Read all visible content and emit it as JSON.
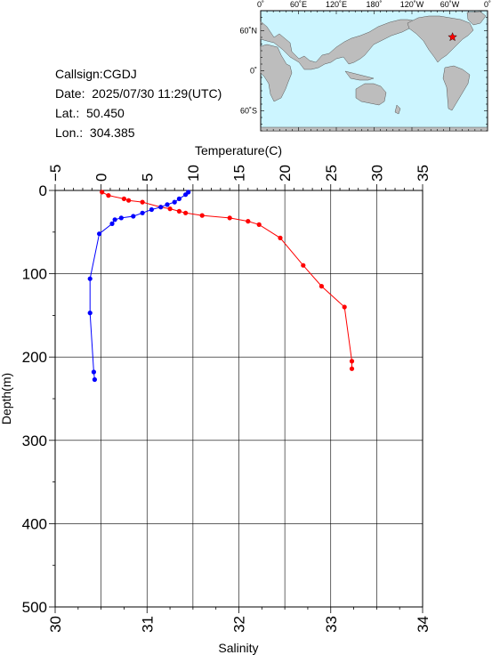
{
  "info": {
    "callsign": "Callsign:CGDJ",
    "date": "Date:  2025/07/30 11:29(UTC)",
    "lat": "Lat.:  50.450",
    "lon": "Lon.:  304.385"
  },
  "map": {
    "top_labels": [
      "0˚",
      "60˚E",
      "120˚E",
      "180˚",
      "120˚W",
      "60˚W",
      "0˚"
    ],
    "left_labels": [
      "60˚N",
      "0˚",
      "60˚S"
    ],
    "ocean_color": "#ccf5ff",
    "land_color": "#bdbdbd",
    "marker_color": "#ff0000",
    "marker_icon": "star-icon",
    "station": {
      "lat": 50.45,
      "lon": 304.385
    }
  },
  "chart_data": {
    "type": "line",
    "top_axis": {
      "label": "Temperature(C)",
      "range": [
        -5,
        35
      ],
      "ticks": [
        "−5",
        "0",
        "5",
        "10",
        "15",
        "20",
        "25",
        "30",
        "35"
      ]
    },
    "bottom_axis": {
      "label": "Salinity",
      "range": [
        30,
        34
      ],
      "ticks": [
        "30",
        "31",
        "32",
        "33",
        "34"
      ]
    },
    "left_axis": {
      "label": "Depth(m)",
      "range": [
        0,
        500
      ],
      "ticks": [
        "0",
        "100",
        "200",
        "300",
        "400",
        "500"
      ]
    },
    "grid": true,
    "series": [
      {
        "axis": "temperature",
        "color": "#ff0000",
        "points": [
          [
            0.1,
            2
          ],
          [
            0.8,
            6
          ],
          [
            2.5,
            10
          ],
          [
            3.0,
            12
          ],
          [
            4.5,
            14
          ],
          [
            6.5,
            20
          ],
          [
            7.5,
            22
          ],
          [
            8.5,
            25
          ],
          [
            9.2,
            27
          ],
          [
            11.0,
            30
          ],
          [
            14.0,
            33
          ],
          [
            16.0,
            37
          ],
          [
            17.2,
            41
          ],
          [
            19.5,
            57
          ],
          [
            22.0,
            90
          ],
          [
            24.0,
            115
          ],
          [
            26.5,
            140
          ],
          [
            27.3,
            205
          ],
          [
            27.3,
            214
          ]
        ]
      },
      {
        "axis": "salinity",
        "color": "#0000ff",
        "points": [
          [
            31.45,
            2
          ],
          [
            31.42,
            5
          ],
          [
            31.35,
            10
          ],
          [
            31.3,
            14
          ],
          [
            31.22,
            17
          ],
          [
            31.15,
            20
          ],
          [
            31.05,
            23
          ],
          [
            30.95,
            27
          ],
          [
            30.85,
            31
          ],
          [
            30.72,
            33
          ],
          [
            30.65,
            35
          ],
          [
            30.62,
            40
          ],
          [
            30.48,
            52
          ],
          [
            30.38,
            106
          ],
          [
            30.38,
            147
          ],
          [
            30.42,
            218
          ],
          [
            30.43,
            227
          ]
        ]
      }
    ]
  }
}
